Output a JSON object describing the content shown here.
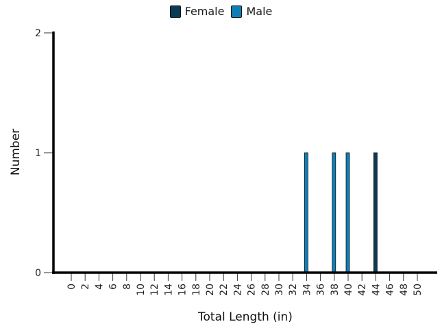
{
  "chart_data": {
    "type": "bar",
    "xlabel": "Total Length (in)",
    "ylabel": "Number",
    "ylim": [
      0,
      2
    ],
    "yticks": [
      "0",
      "1",
      "2"
    ],
    "x_ticks": [
      0,
      2,
      4,
      6,
      8,
      10,
      12,
      14,
      16,
      18,
      20,
      22,
      24,
      26,
      28,
      30,
      32,
      34,
      36,
      38,
      40,
      42,
      44,
      46,
      48,
      50
    ],
    "legend_position": "top-center",
    "grid": false,
    "series": [
      {
        "name": "Female",
        "color": "#0b3a55",
        "points": [
          {
            "x": 44,
            "y": 1
          }
        ]
      },
      {
        "name": "Male",
        "color": "#0e7fb6",
        "points": [
          {
            "x": 34,
            "y": 1
          },
          {
            "x": 38,
            "y": 1
          },
          {
            "x": 40,
            "y": 1
          }
        ]
      }
    ]
  }
}
